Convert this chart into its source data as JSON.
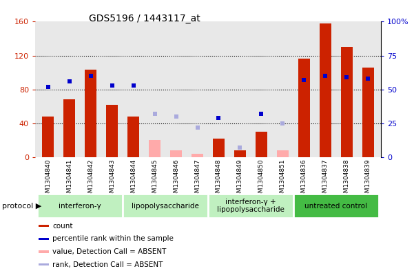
{
  "title": "GDS5196 / 1443117_at",
  "samples": [
    "GSM1304840",
    "GSM1304841",
    "GSM1304842",
    "GSM1304843",
    "GSM1304844",
    "GSM1304845",
    "GSM1304846",
    "GSM1304847",
    "GSM1304848",
    "GSM1304849",
    "GSM1304850",
    "GSM1304851",
    "GSM1304836",
    "GSM1304837",
    "GSM1304838",
    "GSM1304839"
  ],
  "groups": [
    {
      "label": "interferon-γ",
      "start": 0,
      "end": 4
    },
    {
      "label": "lipopolysaccharide",
      "start": 4,
      "end": 8
    },
    {
      "label": "interferon-γ +\nlipopolysaccharide",
      "start": 8,
      "end": 12
    },
    {
      "label": "untreated control",
      "start": 12,
      "end": 16
    }
  ],
  "bar_values": [
    48,
    68,
    103,
    62,
    48,
    20,
    8,
    4,
    22,
    8,
    30,
    8,
    116,
    158,
    130,
    106
  ],
  "bar_absent": [
    false,
    false,
    false,
    false,
    false,
    true,
    true,
    true,
    false,
    false,
    false,
    true,
    false,
    false,
    false,
    false
  ],
  "rank_values": [
    52,
    56,
    60,
    53,
    53,
    32,
    30,
    22,
    29,
    7,
    32,
    25,
    57,
    60,
    59,
    58
  ],
  "rank_absent": [
    false,
    false,
    false,
    false,
    false,
    true,
    true,
    true,
    false,
    true,
    false,
    true,
    false,
    false,
    false,
    false
  ],
  "ylim_left": [
    0,
    160
  ],
  "ylim_right": [
    0,
    100
  ],
  "yticks_left": [
    0,
    40,
    80,
    120,
    160
  ],
  "yticks_right": [
    0,
    25,
    50,
    75,
    100
  ],
  "ytick_labels_right": [
    "0",
    "25",
    "50",
    "75",
    "100%"
  ],
  "bar_color_present": "#CC2200",
  "bar_color_absent": "#FFAAAA",
  "rank_color_present": "#0000CC",
  "rank_color_absent": "#AAAADD",
  "bg_color": "#FFFFFF",
  "plot_bg": "#E8E8E8",
  "group_colors": [
    "#AADDAA",
    "#AADDAA",
    "#AADDAA",
    "#44BB44"
  ],
  "group_light": "#C0F0C0",
  "group_dark": "#44BB44",
  "legend_items": [
    {
      "color": "#CC2200",
      "label": "count"
    },
    {
      "color": "#0000CC",
      "label": "percentile rank within the sample"
    },
    {
      "color": "#FFAAAA",
      "label": "value, Detection Call = ABSENT"
    },
    {
      "color": "#AAAADD",
      "label": "rank, Detection Call = ABSENT"
    }
  ]
}
